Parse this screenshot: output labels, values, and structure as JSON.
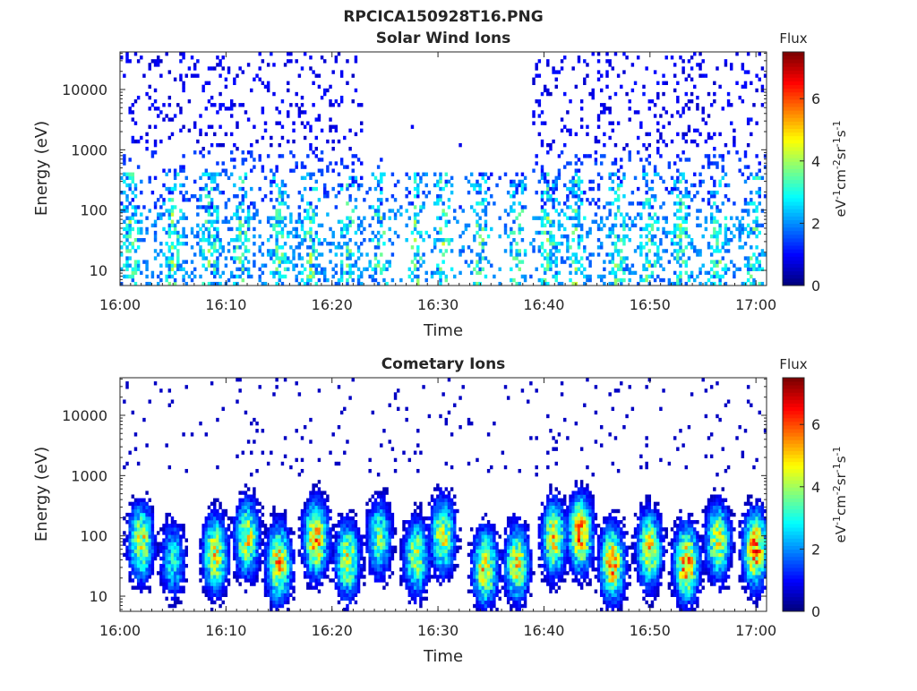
{
  "figure_title": "RPCICA150928T16.PNG",
  "chart_data": [
    {
      "type": "heatmap",
      "title": "Solar Wind Ions",
      "xlabel": "Time",
      "ylabel": "Energy (eV)",
      "xlim": [
        "16:00",
        "17:01"
      ],
      "ylim": [
        5.6,
        42000
      ],
      "yscale": "log",
      "xticks": [
        "16:00",
        "16:10",
        "16:20",
        "16:30",
        "16:40",
        "16:50",
        "17:00"
      ],
      "yticks": [
        "10",
        "100",
        "1000",
        "10000"
      ],
      "colorbar": {
        "label_top": "Flux",
        "unit": "eV-1cm-2sr-1s-1",
        "range": [
          0,
          7.5
        ],
        "ticks": [
          "0",
          "2",
          "4",
          "6"
        ]
      },
      "colormap": "jet",
      "grid": false,
      "time_step_s": 16,
      "time_start": "16:00",
      "background_bursts_min": [
        1,
        5,
        8.5,
        11.5,
        15,
        18,
        21.5,
        24.5,
        28,
        30.5,
        34,
        37.5,
        40.5,
        43,
        47,
        50,
        53,
        56.5,
        60
      ],
      "burst_peak_flux": 2.2,
      "rows_flux_mean_by_energy": {
        "low_10_100": 1.5,
        "mid_100_1000": 1.0,
        "high_1000_42000": 0.5
      },
      "quiet_interval_min": [
        23,
        39
      ]
    },
    {
      "type": "heatmap",
      "title": "Cometary Ions",
      "xlabel": "Time",
      "ylabel": "Energy (eV)",
      "xlim": [
        "16:00",
        "17:01"
      ],
      "ylim": [
        5.6,
        42000
      ],
      "yscale": "log",
      "xticks": [
        "16:00",
        "16:10",
        "16:20",
        "16:30",
        "16:40",
        "16:50",
        "17:00"
      ],
      "yticks": [
        "10",
        "100",
        "1000",
        "10000"
      ],
      "colorbar": {
        "label_top": "Flux",
        "unit": "eV-1cm-2sr-1s-1",
        "range": [
          0,
          7.5
        ],
        "ticks": [
          "0",
          "2",
          "4",
          "6"
        ]
      },
      "colormap": "jet",
      "grid": false,
      "time_step_s": 16,
      "time_start": "16:00",
      "bursts_min": [
        2,
        5,
        9,
        12,
        15,
        18.5,
        21.5,
        24.5,
        28,
        30.5,
        34.5,
        37.5,
        41,
        43.5,
        46.5,
        50,
        53.5,
        56.5,
        60
      ],
      "burst_center_energy_eV": [
        80,
        40,
        50,
        90,
        35,
        90,
        40,
        90,
        45,
        100,
        30,
        35,
        90,
        110,
        35,
        60,
        35,
        80,
        60
      ],
      "burst_peak_flux": [
        5.0,
        3.2,
        5.2,
        5.0,
        5.6,
        5.8,
        4.9,
        4.0,
        4.6,
        4.8,
        5.4,
        5.0,
        5.1,
        6.0,
        5.8,
        5.2,
        6.0,
        4.9,
        6.2
      ],
      "sparse_high_energy_flux": 0.5
    }
  ]
}
